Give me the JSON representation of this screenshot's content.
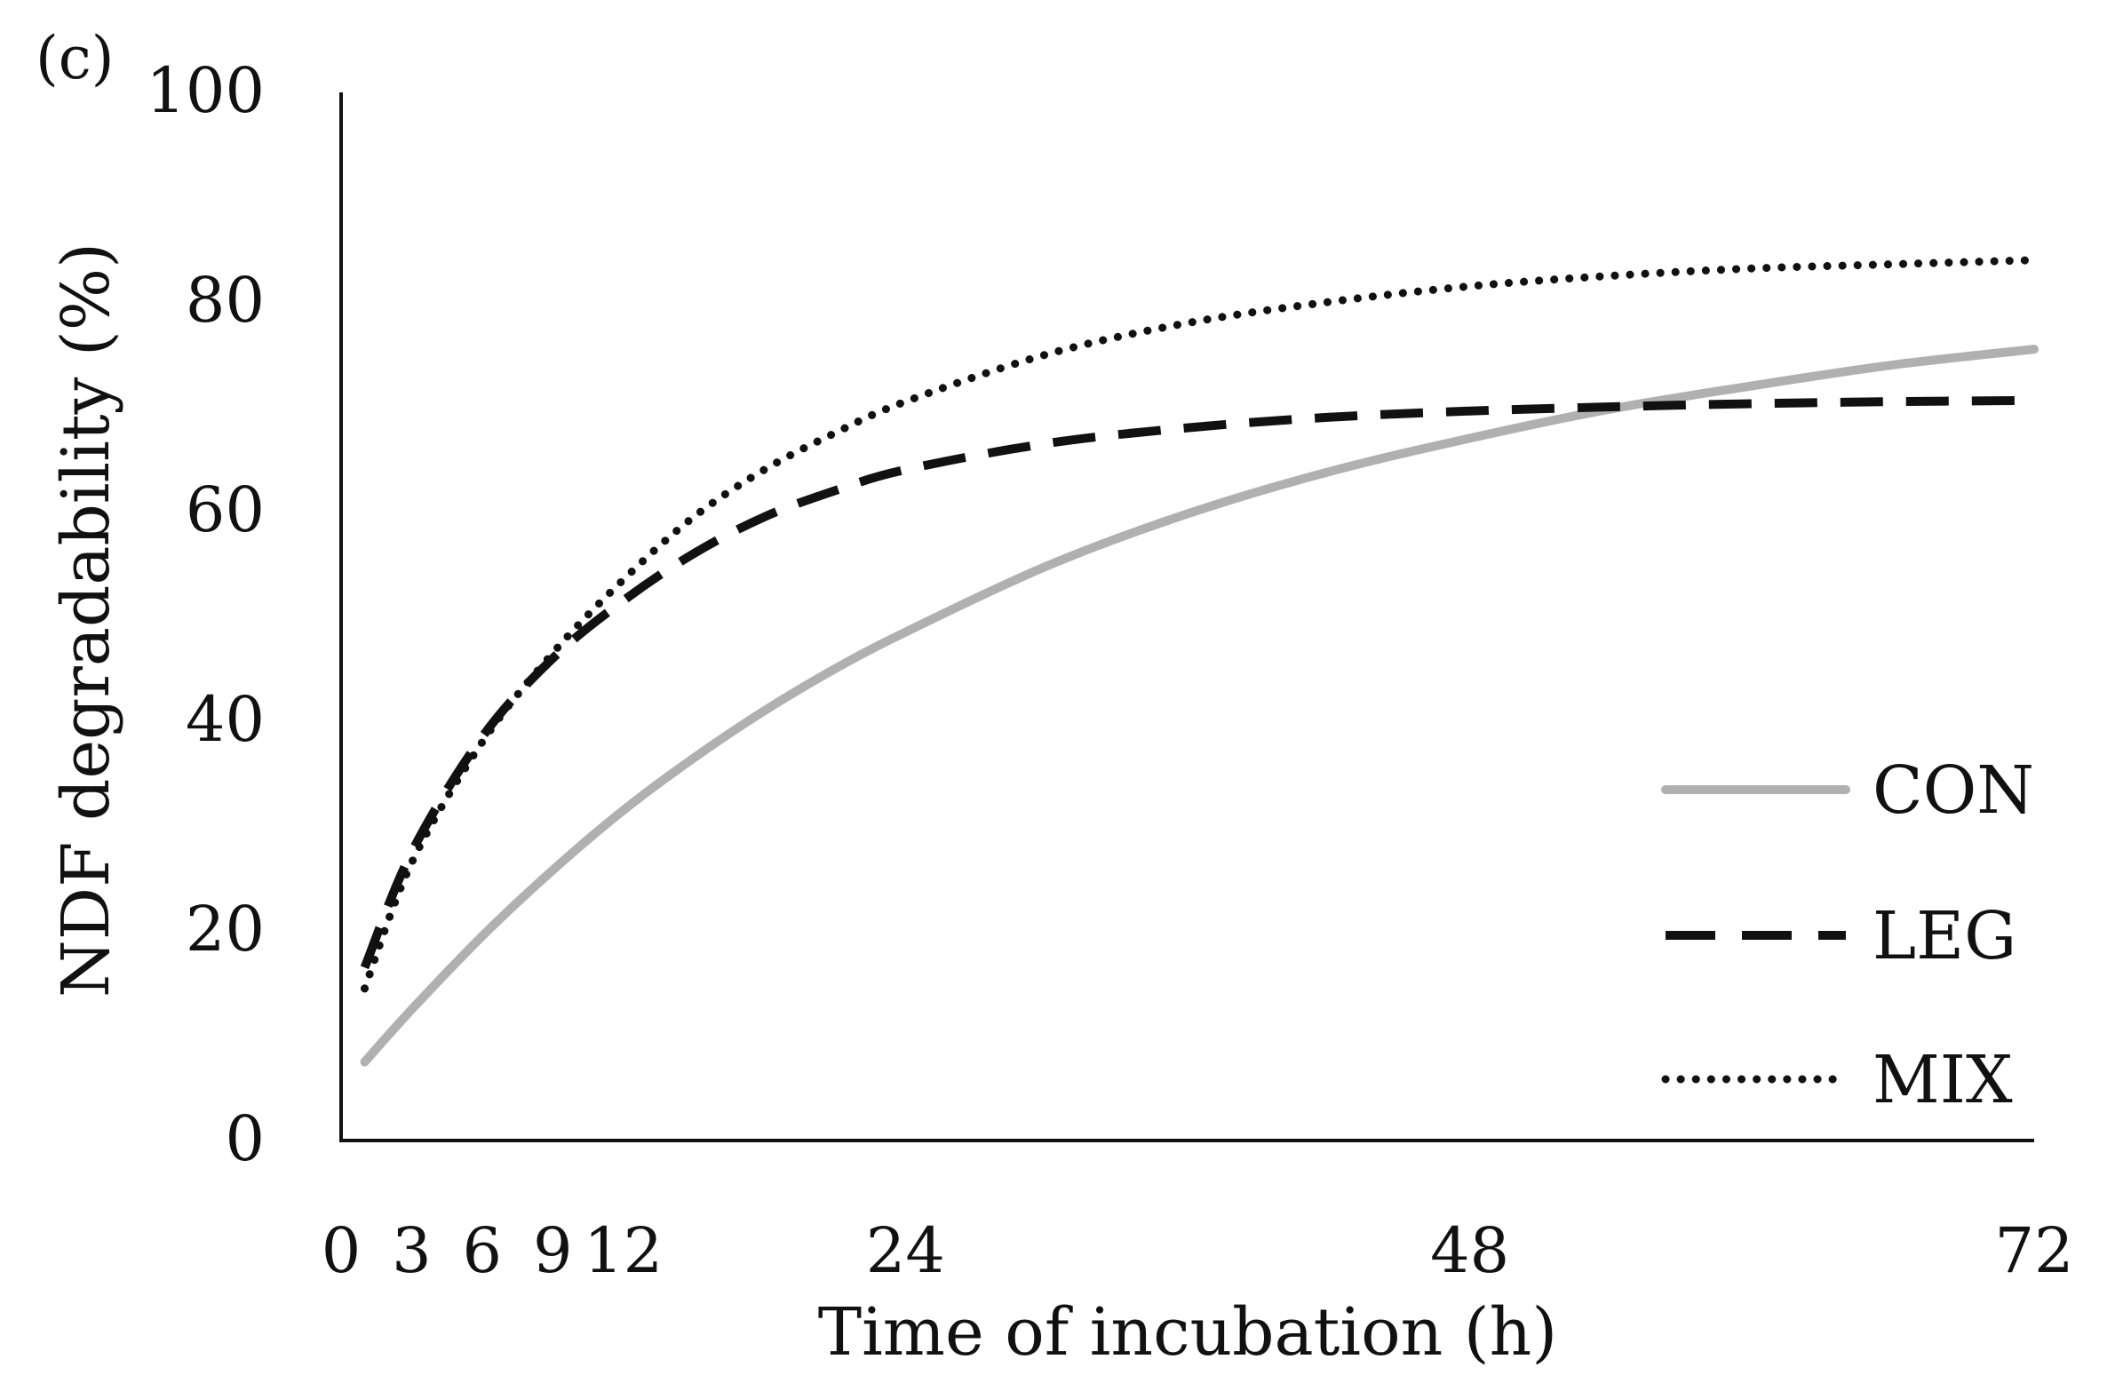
{
  "chart_data": {
    "type": "line",
    "panel_label": "(c)",
    "title": "",
    "xlabel": "Time of incubation (h)",
    "ylabel": "NDF degradability (%)",
    "xlim": [
      0,
      72
    ],
    "ylim": [
      0,
      100
    ],
    "x_ticks": [
      "0",
      "3",
      "6",
      "9",
      "12",
      "24",
      "48",
      "72"
    ],
    "y_ticks": [
      "0",
      "20",
      "40",
      "60",
      "80",
      "100"
    ],
    "grid": false,
    "legend_position": "bottom-right",
    "x": [
      1,
      3,
      6,
      9,
      12,
      15,
      18,
      21,
      24,
      30,
      36,
      42,
      48,
      54,
      60,
      66,
      72
    ],
    "series": [
      {
        "name": "CON",
        "color": "#b0b0b0",
        "style": "solid",
        "values": [
          7.5,
          12.5,
          19.5,
          25.8,
          31.5,
          36.5,
          41.0,
          45.0,
          48.5,
          54.8,
          59.8,
          63.8,
          67.0,
          69.8,
          72.0,
          74.0,
          75.5
        ]
      },
      {
        "name": "LEG",
        "color": "#111111",
        "style": "dashed",
        "values": [
          16.5,
          27.5,
          38.5,
          46.0,
          51.5,
          56.0,
          59.5,
          62.0,
          64.0,
          66.5,
          68.0,
          69.0,
          69.6,
          70.0,
          70.3,
          70.5,
          70.6
        ]
      },
      {
        "name": "MIX",
        "color": "#111111",
        "style": "dotted",
        "values": [
          14.5,
          26.5,
          38.0,
          46.5,
          53.5,
          59.5,
          64.0,
          67.5,
          70.5,
          75.0,
          78.0,
          80.0,
          81.5,
          82.5,
          83.2,
          83.6,
          84.0
        ]
      }
    ]
  }
}
